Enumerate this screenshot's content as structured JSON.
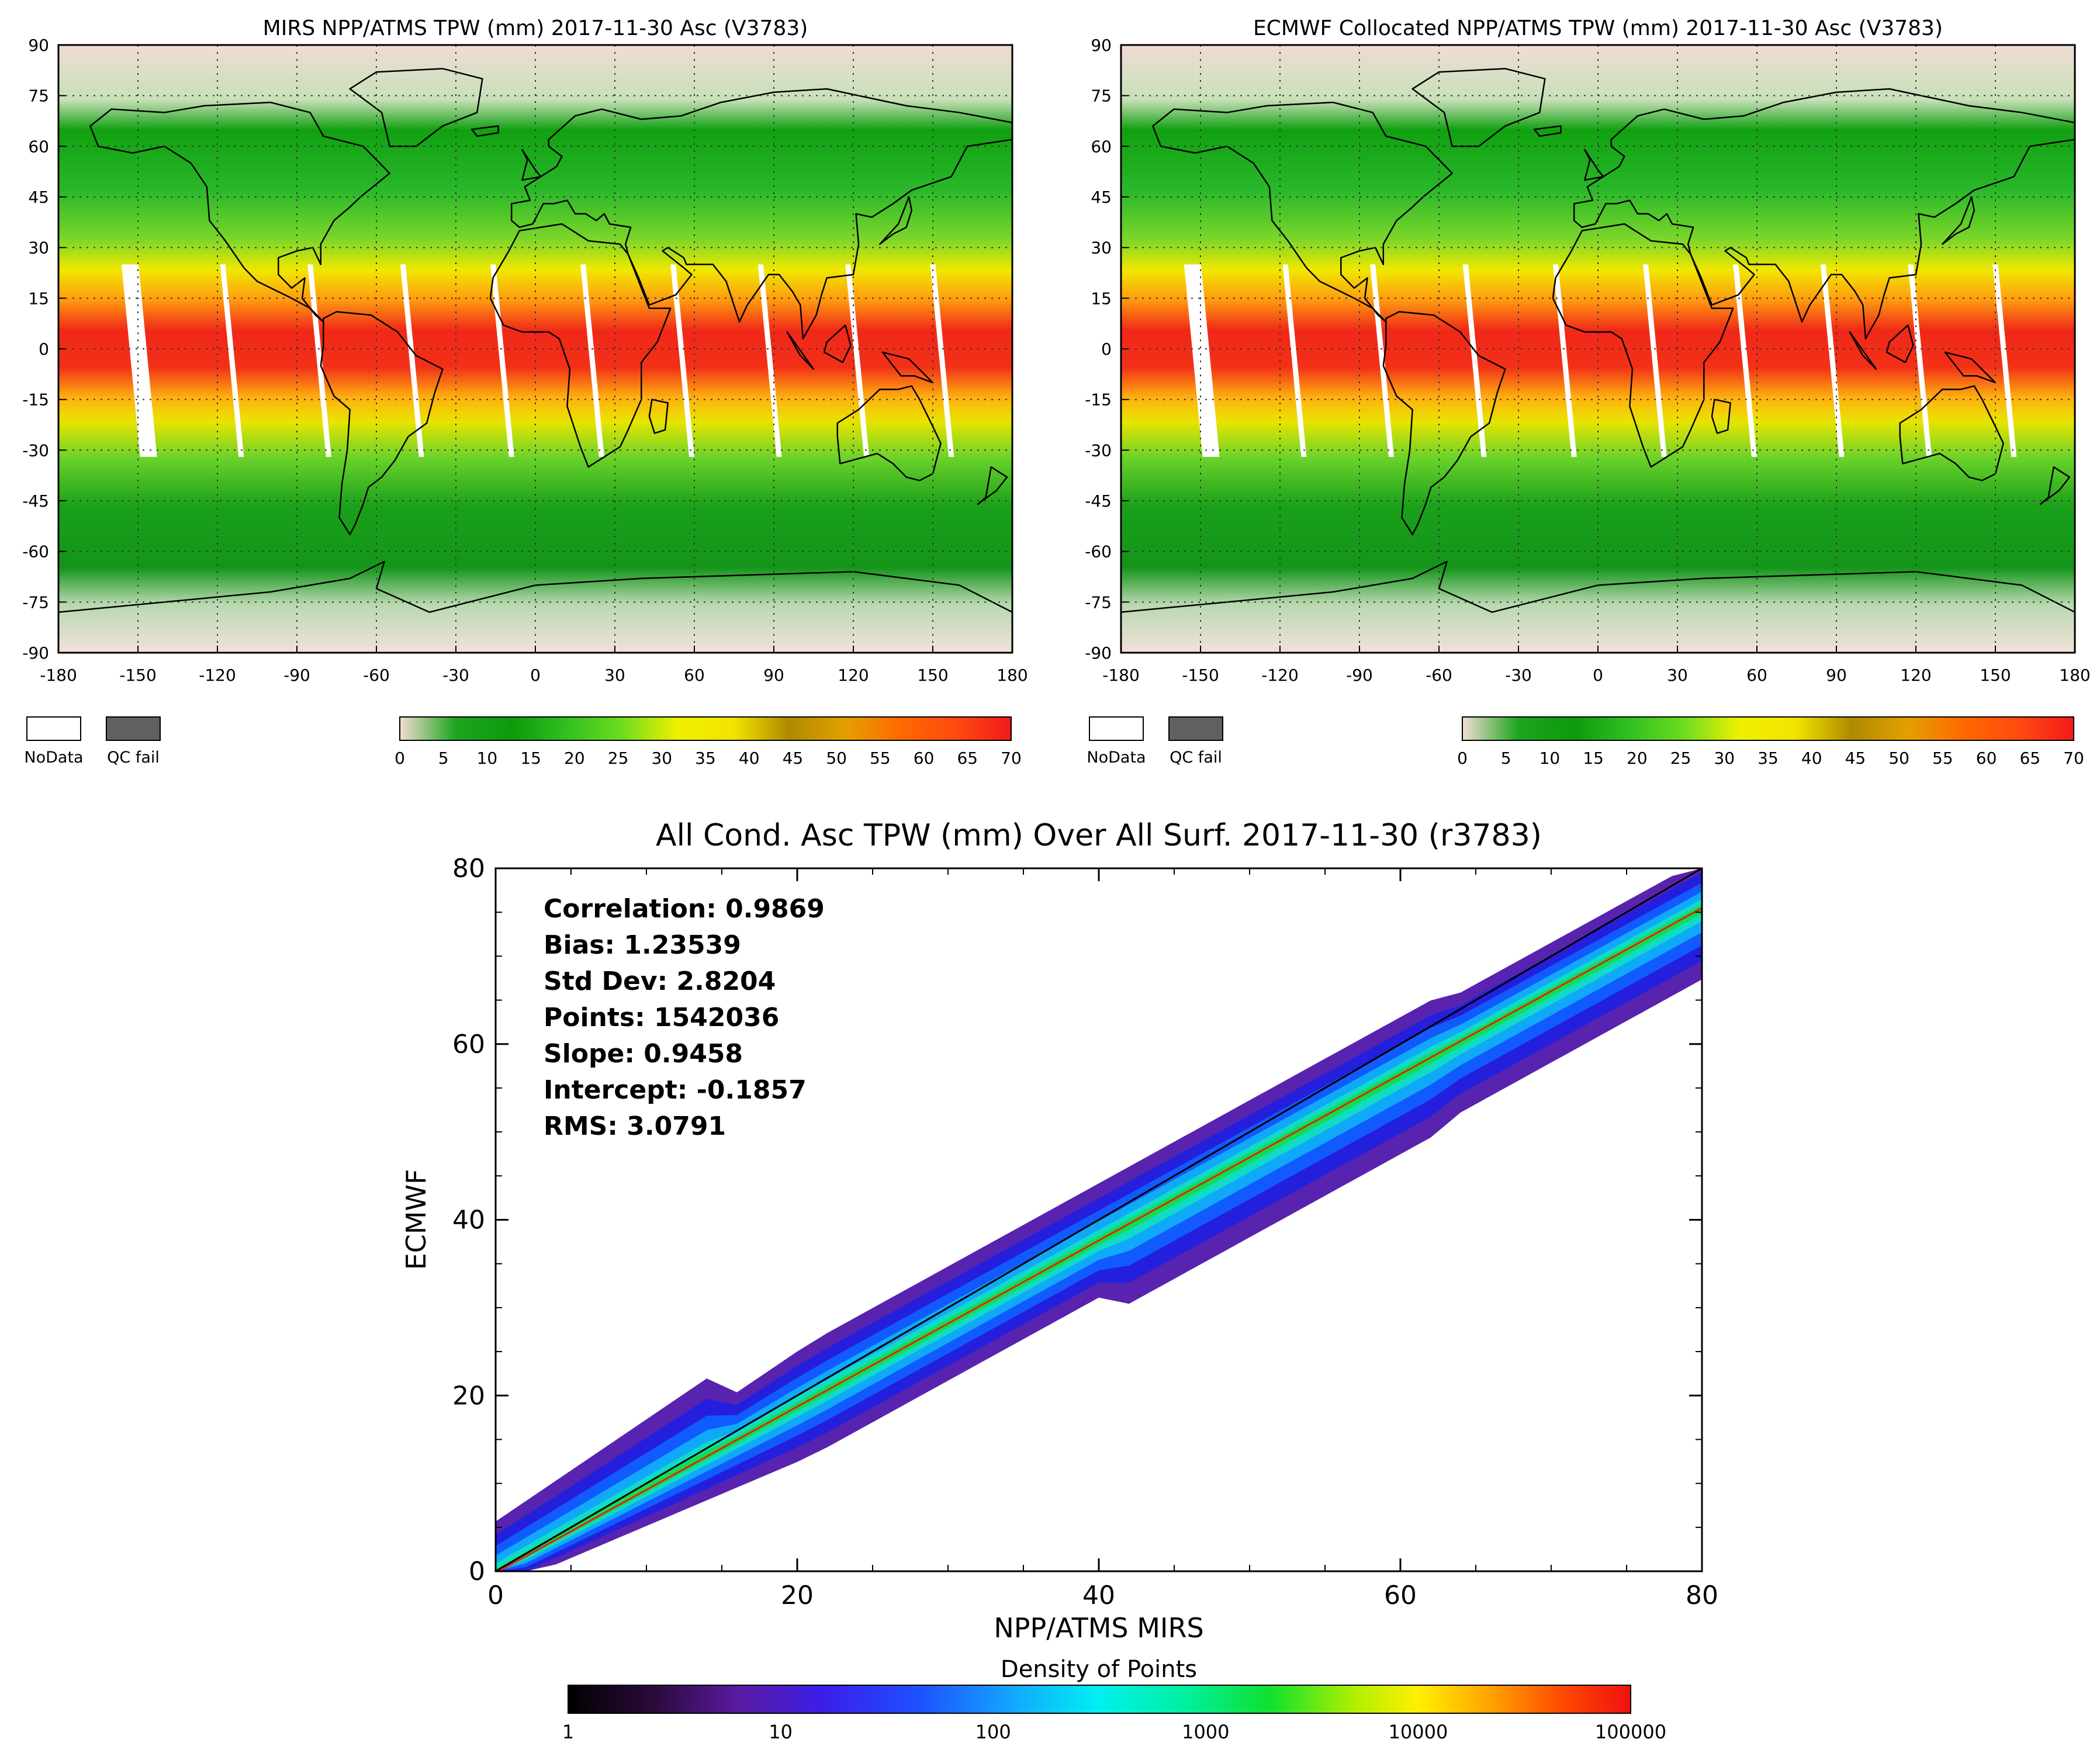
{
  "maps": [
    {
      "title": "MIRS NPP/ATMS TPW (mm) 2017-11-30 Asc  (V3783)",
      "legend_nodata": "NoData",
      "legend_qcfail": "QC fail"
    },
    {
      "title": "ECMWF Collocated NPP/ATMS TPW (mm) 2017-11-30 Asc (V3783)",
      "legend_nodata": "NoData",
      "legend_qcfail": "QC fail"
    }
  ],
  "map_axis": {
    "lon_ticks": [
      "-180",
      "-150",
      "-120",
      "-90",
      "-60",
      "-30",
      "0",
      "30",
      "60",
      "90",
      "120",
      "150",
      "180"
    ],
    "lat_ticks": [
      "90",
      "75",
      "60",
      "45",
      "30",
      "15",
      "0",
      "-15",
      "-30",
      "-45",
      "-60",
      "-75",
      "-90"
    ]
  },
  "tpw_colorbar": {
    "ticks": [
      "0",
      "5",
      "10",
      "15",
      "20",
      "25",
      "30",
      "35",
      "40",
      "45",
      "50",
      "55",
      "60",
      "65",
      "70"
    ],
    "stops": [
      "#f4dcd4",
      "#1fa51f",
      "#0c9a0c",
      "#30c020",
      "#6edc20",
      "#f0f000",
      "#f2e400",
      "#ae8a00",
      "#e2a000",
      "#ff6a00",
      "#ff4a10",
      "#f21a1a"
    ]
  },
  "scatter": {
    "title": "All Cond. Asc TPW (mm) Over All Surf. 2017-11-30 (r3783)",
    "stats": [
      "Correlation: 0.9869",
      "Bias: 1.23539",
      "Std Dev: 2.8204",
      "Points: 1542036",
      "Slope: 0.9458",
      "Intercept: -0.1857",
      "RMS: 3.0791"
    ],
    "density_label": "Density of Points",
    "density_ticks": [
      "1",
      "10",
      "100",
      "1000",
      "10000",
      "100000"
    ]
  },
  "chart_data": {
    "type": "scatter",
    "title": "All Cond. Asc TPW (mm) Over All Surf. 2017-11-30 (r3783)",
    "xlabel": "NPP/ATMS MIRS",
    "ylabel": "ECMWF",
    "xlim": [
      0,
      80
    ],
    "ylim": [
      0,
      80
    ],
    "x_ticks": [
      0,
      20,
      40,
      60,
      80
    ],
    "y_ticks": [
      0,
      20,
      40,
      60,
      80
    ],
    "series": [
      {
        "name": "one-to-one line",
        "x": [
          0,
          80
        ],
        "y": [
          0,
          80
        ],
        "color": "#000000"
      },
      {
        "name": "regression fit",
        "slope": 0.9458,
        "intercept": -0.1857,
        "x": [
          0,
          80
        ],
        "color": "#e02020"
      }
    ],
    "statistics": {
      "correlation": 0.9869,
      "bias": 1.23539,
      "std_dev": 2.8204,
      "points": 1542036,
      "slope": 0.9458,
      "intercept": -0.1857,
      "rms": 3.0791
    },
    "density_scale": [
      1,
      100000
    ]
  }
}
